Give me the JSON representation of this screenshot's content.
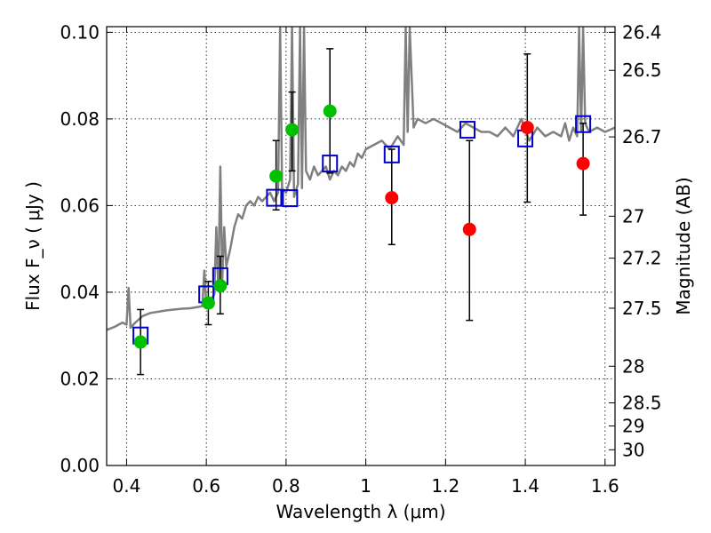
{
  "chart_data": {
    "type": "scatter",
    "xlabel": "Wavelength  λ (μm)",
    "ylabel": "Flux  F_ν  ( μJy )",
    "ylabel_right": "Magnitude (AB)",
    "xlim": [
      0.35,
      1.625
    ],
    "ylim": [
      0.0,
      0.1013
    ],
    "grid": true,
    "x_ticks": [
      {
        "value": 0.4,
        "label": "0.4"
      },
      {
        "value": 0.6,
        "label": "0.6"
      },
      {
        "value": 0.8,
        "label": "0.8"
      },
      {
        "value": 1.0,
        "label": "1"
      },
      {
        "value": 1.2,
        "label": "1.2"
      },
      {
        "value": 1.4,
        "label": "1.4"
      },
      {
        "value": 1.6,
        "label": "1.6"
      }
    ],
    "y_ticks": [
      {
        "value": 0.0,
        "label": "0.00"
      },
      {
        "value": 0.02,
        "label": "0.02"
      },
      {
        "value": 0.04,
        "label": "0.04"
      },
      {
        "value": 0.06,
        "label": "0.06"
      },
      {
        "value": 0.08,
        "label": "0.08"
      },
      {
        "value": 0.1,
        "label": "0.10"
      }
    ],
    "right_ticks": [
      {
        "mag": 26.4,
        "label": "26.4"
      },
      {
        "mag": 26.5,
        "label": "26.5"
      },
      {
        "mag": 26.7,
        "label": "26.7"
      },
      {
        "mag": 27.0,
        "label": "27"
      },
      {
        "mag": 27.2,
        "label": "27.2"
      },
      {
        "mag": 27.5,
        "label": "27.5"
      },
      {
        "mag": 28.0,
        "label": "28"
      },
      {
        "mag": 28.5,
        "label": "28.5"
      },
      {
        "mag": 29.0,
        "label": "29"
      },
      {
        "mag": 30.0,
        "label": "30"
      }
    ],
    "colors": {
      "spectrum": "#808080",
      "observed": "#00c000",
      "limits": "#ff0000",
      "model": "#0000c8",
      "errorbar": "#000000"
    },
    "spectrum": {
      "x": [
        0.35,
        0.37,
        0.39,
        0.4,
        0.405,
        0.41,
        0.42,
        0.44,
        0.46,
        0.48,
        0.5,
        0.52,
        0.54,
        0.56,
        0.58,
        0.59,
        0.595,
        0.6,
        0.605,
        0.61,
        0.62,
        0.625,
        0.63,
        0.635,
        0.64,
        0.645,
        0.65,
        0.66,
        0.67,
        0.68,
        0.69,
        0.7,
        0.71,
        0.72,
        0.73,
        0.74,
        0.75,
        0.76,
        0.77,
        0.78,
        0.785,
        0.79,
        0.8,
        0.81,
        0.815,
        0.82,
        0.83,
        0.835,
        0.84,
        0.845,
        0.85,
        0.86,
        0.87,
        0.88,
        0.89,
        0.9,
        0.91,
        0.92,
        0.93,
        0.94,
        0.95,
        0.96,
        0.97,
        0.98,
        0.99,
        1.0,
        1.02,
        1.04,
        1.06,
        1.08,
        1.095,
        1.1,
        1.105,
        1.11,
        1.12,
        1.13,
        1.15,
        1.17,
        1.19,
        1.21,
        1.23,
        1.25,
        1.27,
        1.29,
        1.31,
        1.33,
        1.35,
        1.37,
        1.39,
        1.41,
        1.43,
        1.45,
        1.47,
        1.49,
        1.5,
        1.51,
        1.52,
        1.53,
        1.535,
        1.54,
        1.545,
        1.55,
        1.56,
        1.58,
        1.6,
        1.625
      ],
      "y": [
        0.0313,
        0.032,
        0.033,
        0.0325,
        0.041,
        0.0318,
        0.0328,
        0.0345,
        0.0352,
        0.0355,
        0.0358,
        0.036,
        0.0362,
        0.0363,
        0.0366,
        0.0368,
        0.045,
        0.037,
        0.0385,
        0.038,
        0.0395,
        0.055,
        0.041,
        0.069,
        0.043,
        0.055,
        0.046,
        0.05,
        0.055,
        0.058,
        0.057,
        0.06,
        0.061,
        0.06,
        0.062,
        0.061,
        0.062,
        0.063,
        0.061,
        0.063,
        0.101,
        0.064,
        0.063,
        0.066,
        0.101,
        0.062,
        0.065,
        0.101,
        0.064,
        0.101,
        0.068,
        0.066,
        0.069,
        0.067,
        0.068,
        0.069,
        0.066,
        0.068,
        0.067,
        0.069,
        0.068,
        0.07,
        0.069,
        0.072,
        0.071,
        0.073,
        0.074,
        0.075,
        0.073,
        0.076,
        0.074,
        0.101,
        0.077,
        0.101,
        0.078,
        0.08,
        0.079,
        0.08,
        0.079,
        0.078,
        0.077,
        0.079,
        0.078,
        0.077,
        0.077,
        0.076,
        0.078,
        0.076,
        0.08,
        0.075,
        0.078,
        0.076,
        0.077,
        0.076,
        0.079,
        0.075,
        0.078,
        0.076,
        0.101,
        0.077,
        0.101,
        0.079,
        0.077,
        0.078,
        0.077,
        0.078
      ]
    },
    "model_points": {
      "x": [
        0.435,
        0.6,
        0.635,
        0.77,
        0.81,
        0.91,
        1.065,
        1.255,
        1.4,
        1.545
      ],
      "y": [
        0.03,
        0.0395,
        0.0437,
        0.0618,
        0.0617,
        0.0697,
        0.0718,
        0.0775,
        0.0755,
        0.0788
      ]
    },
    "observed_points": {
      "x": [
        0.435,
        0.605,
        0.635,
        0.775,
        0.815,
        0.91
      ],
      "y": [
        0.0285,
        0.0375,
        0.0415,
        0.0668,
        0.0775,
        0.0818
      ],
      "err_low": [
        0.021,
        0.0325,
        0.035,
        0.059,
        0.068,
        0.0675
      ],
      "err_high": [
        0.036,
        0.0425,
        0.0483,
        0.075,
        0.0862,
        0.0962
      ]
    },
    "limit_points": {
      "x": [
        1.065,
        1.26,
        1.405,
        1.545
      ],
      "y": [
        0.0618,
        0.0545,
        0.078,
        0.0697
      ],
      "err_low": [
        0.051,
        0.0335,
        0.0608,
        0.0578
      ],
      "err_high": [
        0.073,
        0.075,
        0.095,
        0.079
      ]
    }
  }
}
